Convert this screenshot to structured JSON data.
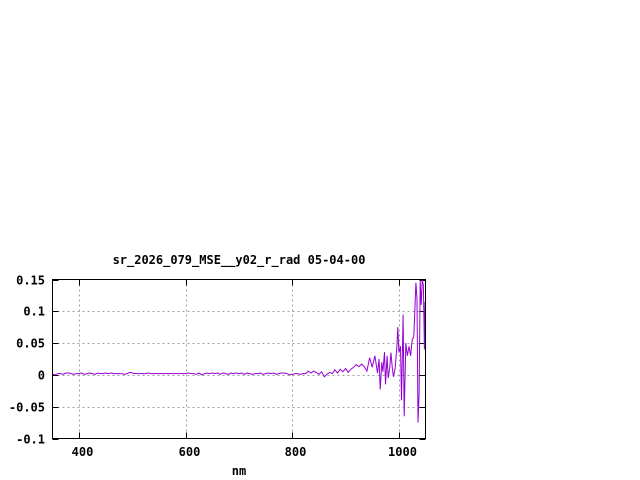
{
  "chart_data": {
    "type": "line",
    "title": "sr_2026_079_MSE__y02_r_rad 05-04-00",
    "xlabel": "nm",
    "ylabel": "",
    "xlim": [
      350,
      1050
    ],
    "ylim": [
      -0.1,
      0.15
    ],
    "xticks": [
      400,
      600,
      800,
      1000
    ],
    "xtick_labels": [
      "400",
      "600",
      "800",
      "1000"
    ],
    "yticks": [
      -0.1,
      -0.05,
      0,
      0.05,
      0.1,
      0.15
    ],
    "ytick_labels": [
      "-0.1",
      "-0.05",
      "0",
      "0.05",
      "0.1",
      "0.15"
    ],
    "grid": true,
    "line_color": "#9400d3",
    "series": [
      {
        "x": [
          350,
          355,
          360,
          365,
          370,
          375,
          380,
          385,
          390,
          395,
          400,
          405,
          410,
          415,
          420,
          425,
          430,
          435,
          440,
          445,
          450,
          455,
          460,
          465,
          470,
          475,
          480,
          485,
          490,
          495,
          500,
          505,
          510,
          515,
          520,
          525,
          530,
          535,
          540,
          545,
          550,
          555,
          560,
          565,
          570,
          575,
          580,
          585,
          590,
          595,
          600,
          605,
          610,
          615,
          620,
          625,
          630,
          635,
          640,
          645,
          650,
          655,
          660,
          665,
          670,
          675,
          680,
          685,
          690,
          695,
          700,
          705,
          710,
          715,
          720,
          725,
          730,
          735,
          740,
          745,
          750,
          755,
          760,
          765,
          770,
          775,
          780,
          785,
          790,
          795,
          800,
          805,
          810,
          815,
          820,
          825,
          830,
          835,
          840,
          845,
          850,
          855,
          860,
          865,
          870,
          875,
          880,
          885,
          890,
          895,
          900,
          905,
          910,
          915,
          920,
          925,
          930,
          935,
          940,
          945,
          950,
          955,
          960,
          963,
          965,
          968,
          970,
          973,
          975,
          978,
          980,
          983,
          985,
          988,
          990,
          993,
          996,
          998,
          1000,
          1003,
          1005,
          1008,
          1010,
          1013,
          1016,
          1019,
          1022,
          1025,
          1028,
          1030,
          1032,
          1034,
          1036,
          1038,
          1040,
          1042,
          1044,
          1046,
          1048,
          1049
        ],
        "y": [
          0.001,
          0.0,
          0.002,
          0.002,
          0.001,
          0.003,
          0.003,
          0.002,
          0.001,
          0.002,
          0.002,
          0.003,
          0.001,
          0.002,
          0.003,
          0.002,
          0.001,
          0.003,
          0.002,
          0.002,
          0.003,
          0.002,
          0.003,
          0.002,
          0.002,
          0.002,
          0.002,
          0.001,
          0.002,
          0.004,
          0.003,
          0.002,
          0.002,
          0.002,
          0.002,
          0.002,
          0.003,
          0.002,
          0.002,
          0.002,
          0.002,
          0.002,
          0.002,
          0.002,
          0.002,
          0.002,
          0.002,
          0.002,
          0.002,
          0.002,
          0.002,
          0.003,
          0.002,
          0.002,
          0.001,
          0.003,
          0.0,
          0.002,
          0.003,
          0.002,
          0.003,
          0.002,
          0.003,
          0.001,
          0.003,
          0.002,
          0.001,
          0.003,
          0.002,
          0.003,
          0.002,
          0.003,
          0.001,
          0.003,
          0.002,
          0.001,
          0.002,
          0.002,
          0.003,
          0.001,
          0.002,
          0.003,
          0.002,
          0.003,
          0.001,
          0.002,
          0.003,
          0.003,
          0.002,
          0.0,
          0.001,
          0.002,
          0.002,
          0.001,
          0.002,
          0.002,
          0.006,
          0.003,
          0.006,
          0.004,
          0.001,
          0.005,
          -0.003,
          0.001,
          0.004,
          0.002,
          0.008,
          0.003,
          0.009,
          0.005,
          0.01,
          0.004,
          0.009,
          0.012,
          0.016,
          0.013,
          0.017,
          0.013,
          0.006,
          0.027,
          0.012,
          0.03,
          0.003,
          0.025,
          -0.023,
          0.02,
          0.005,
          0.036,
          -0.015,
          0.03,
          -0.005,
          0.012,
          0.035,
          0.008,
          -0.003,
          0.01,
          0.04,
          0.075,
          0.035,
          0.045,
          -0.04,
          0.095,
          -0.065,
          0.05,
          0.03,
          0.045,
          0.03,
          0.055,
          0.06,
          0.1,
          0.145,
          0.12,
          -0.075,
          -0.03,
          0.148,
          0.11,
          0.15,
          0.14,
          0.04,
          0.115
        ]
      }
    ]
  }
}
